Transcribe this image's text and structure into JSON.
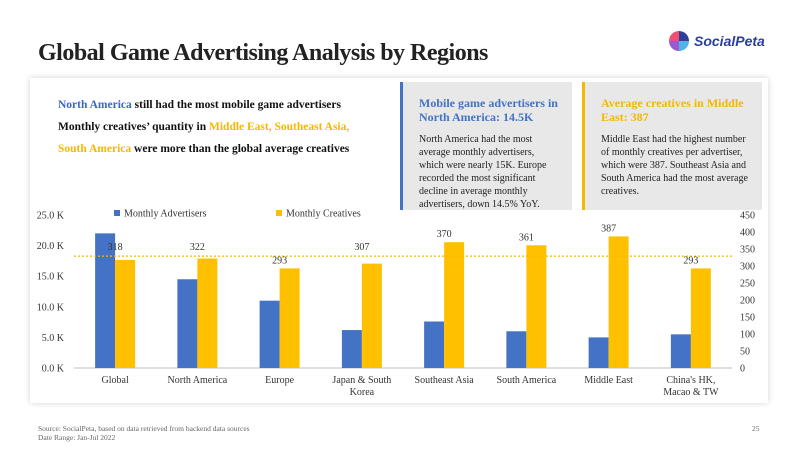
{
  "title": "Global Game Advertising Analysis by Regions",
  "logo": {
    "text": "SocialPeta"
  },
  "highlights": {
    "line1": {
      "a": "North America",
      "b": " still had the most mobile game advertisers"
    },
    "line2": {
      "a": "Monthly creatives’ quantity in ",
      "b": "Middle East, Southeast Asia,"
    },
    "line3": {
      "a": "South America",
      "b": " were more than the global average creatives"
    }
  },
  "cards": [
    {
      "title": "Mobile game advertisers in North America: 14.5K",
      "body": "North America had the most average monthly advertisers, which were nearly 15K. Europe recorded the most significant decline in average monthly advertisers, down 14.5% YoY."
    },
    {
      "title": "Average creatives in Middle East: 387",
      "body": "Middle East had the highest number of monthly creatives per advertiser, which were 387. Southeast Asia and South America had the most average creatives."
    }
  ],
  "chart_data": {
    "type": "bar",
    "categories": [
      "Global",
      "North America",
      "Europe",
      "Japan & South Korea",
      "Southeast Asia",
      "South America",
      "Middle East",
      "China's HK, Macao & TW"
    ],
    "series": [
      {
        "name": "Monthly Advertisers",
        "axis": "left",
        "color": "#4472c4",
        "values": [
          22000,
          14500,
          11000,
          6200,
          7600,
          6000,
          5000,
          5500
        ]
      },
      {
        "name": "Monthly Creatives",
        "axis": "right",
        "color": "#ffc000",
        "values": [
          318,
          322,
          293,
          307,
          370,
          361,
          387,
          293
        ]
      }
    ],
    "y_left": {
      "min": 0,
      "max": 25000,
      "ticks": [
        "0.0 K",
        "5.0 K",
        "10.0 K",
        "15.0 K",
        "20.0 K",
        "25.0 K"
      ]
    },
    "y_right": {
      "min": 0,
      "max": 450,
      "ticks": [
        "0",
        "50",
        "100",
        "150",
        "200",
        "250",
        "300",
        "350",
        "400",
        "450"
      ]
    },
    "reference_line": {
      "axis": "right",
      "value": 329,
      "color": "#f5b800"
    },
    "legend": "top"
  },
  "footer": {
    "source": "Source: SocialPeta, based on data retrieved from backend data sources",
    "date_range": "Date Range: Jan-Jul 2022",
    "page": "25"
  }
}
